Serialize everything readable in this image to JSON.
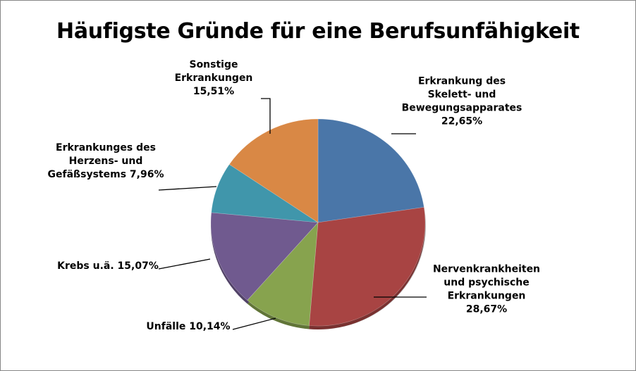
{
  "chart_data": {
    "type": "pie",
    "title": "Häufigste Gründe für eine Berufsunfähigkeit",
    "slices": [
      {
        "lines": [
          "Erkrankung des",
          "Skelett- und",
          "Bewegungsapparates",
          "22,65%"
        ],
        "value": 22.65,
        "color": "#4a76a8"
      },
      {
        "lines": [
          "Nervenkrankheiten",
          "und psychische",
          "Erkrankungen",
          "28,67%"
        ],
        "value": 28.67,
        "color": "#a84443"
      },
      {
        "lines": [
          "Unfälle 10,14%"
        ],
        "value": 10.14,
        "color": "#87a34e"
      },
      {
        "lines": [
          "Krebs u.ä. 15,07%"
        ],
        "value": 15.07,
        "color": "#705a8f"
      },
      {
        "lines": [
          "Erkrankunges des",
          "Herzens- und",
          "Gefäßsystems 7,96%"
        ],
        "value": 7.96,
        "color": "#4096ab"
      },
      {
        "lines": [
          "Sonstige",
          "Erkrankungen",
          "15,51%"
        ],
        "value": 15.51,
        "color": "#d98845"
      }
    ]
  }
}
